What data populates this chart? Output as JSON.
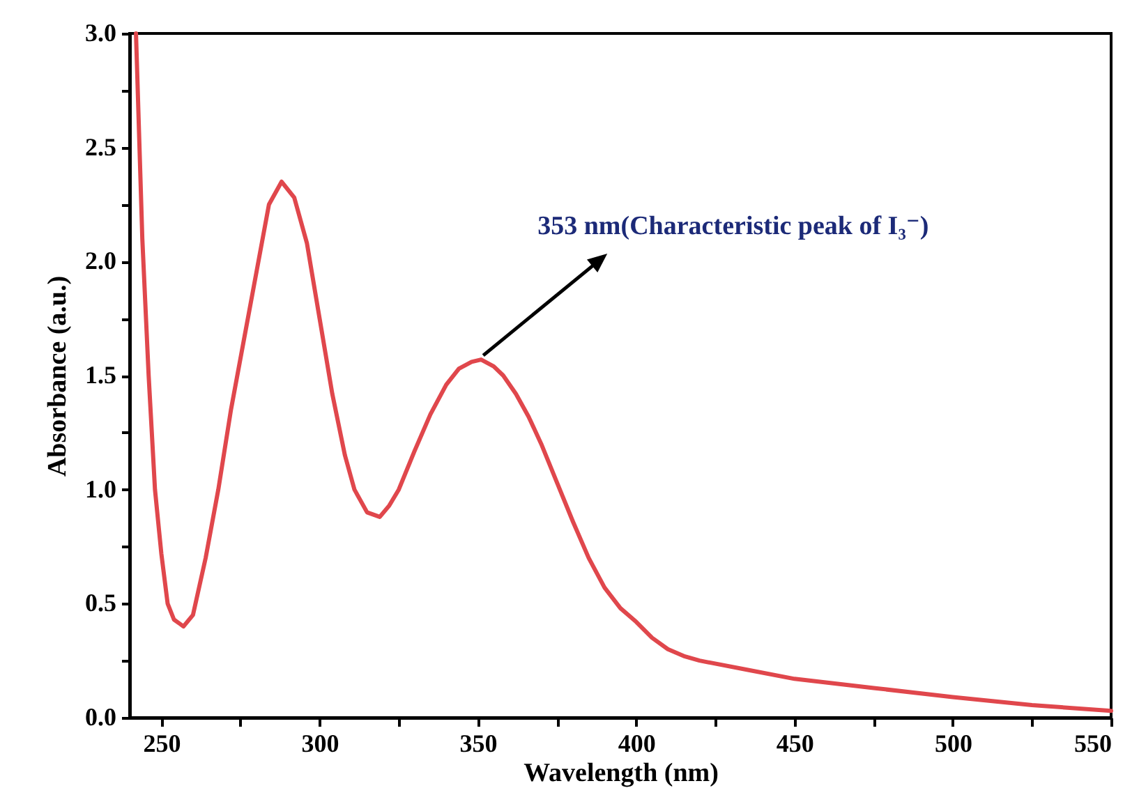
{
  "chart_data": {
    "type": "line",
    "xlabel": "Wavelength (nm)",
    "ylabel": "Absorbance (a.u.)",
    "x": [
      242,
      244,
      246,
      248,
      250,
      252,
      254,
      257,
      260,
      264,
      268,
      272,
      276,
      280,
      284,
      288,
      292,
      296,
      300,
      304,
      308,
      311,
      315,
      319,
      322,
      325,
      330,
      335,
      340,
      344,
      348,
      351,
      355,
      358,
      362,
      366,
      370,
      375,
      380,
      385,
      390,
      395,
      400,
      405,
      410,
      415,
      420,
      435,
      450,
      475,
      500,
      525,
      550
    ],
    "series": [
      {
        "color": "#e0474c",
        "values": [
          3.0,
          2.1,
          1.5,
          1.0,
          0.72,
          0.5,
          0.43,
          0.4,
          0.45,
          0.7,
          1.0,
          1.35,
          1.65,
          1.95,
          2.25,
          2.35,
          2.28,
          2.08,
          1.75,
          1.42,
          1.15,
          1.0,
          0.9,
          0.88,
          0.93,
          1.0,
          1.17,
          1.33,
          1.46,
          1.53,
          1.56,
          1.57,
          1.54,
          1.5,
          1.42,
          1.32,
          1.2,
          1.03,
          0.86,
          0.7,
          0.57,
          0.48,
          0.42,
          0.35,
          0.3,
          0.27,
          0.25,
          0.21,
          0.17,
          0.13,
          0.09,
          0.055,
          0.03
        ]
      }
    ],
    "xlim": [
      240,
      550
    ],
    "xticks": [
      250,
      {
        "value": 275,
        "label": null
      },
      300,
      {
        "value": 325,
        "label": null
      },
      350,
      {
        "value": 375,
        "label": null
      },
      400,
      {
        "value": 425,
        "label": null
      },
      450,
      {
        "value": 475,
        "label": null
      },
      500,
      {
        "value": 525,
        "label": null
      },
      550
    ],
    "ylim": [
      0,
      3
    ],
    "yticks": [
      {
        "value": 0,
        "label": "0.0"
      },
      {
        "value": 0.25,
        "label": null
      },
      0.5,
      {
        "value": 0.75,
        "label": null
      },
      {
        "value": 1,
        "label": "1.0"
      },
      {
        "value": 1.25,
        "label": null
      },
      1.5,
      {
        "value": 1.75,
        "label": null
      },
      {
        "value": 2,
        "label": "2.0"
      },
      {
        "value": 2.25,
        "label": null
      },
      2.5,
      {
        "value": 2.75,
        "label": null
      },
      {
        "value": 3,
        "label": "3.0"
      }
    ],
    "line_style": "solid",
    "annotations": [
      {
        "text": "353 nm(Characteristic peak of I₃⁻)",
        "x": 353,
        "y": 1.57
      }
    ]
  }
}
